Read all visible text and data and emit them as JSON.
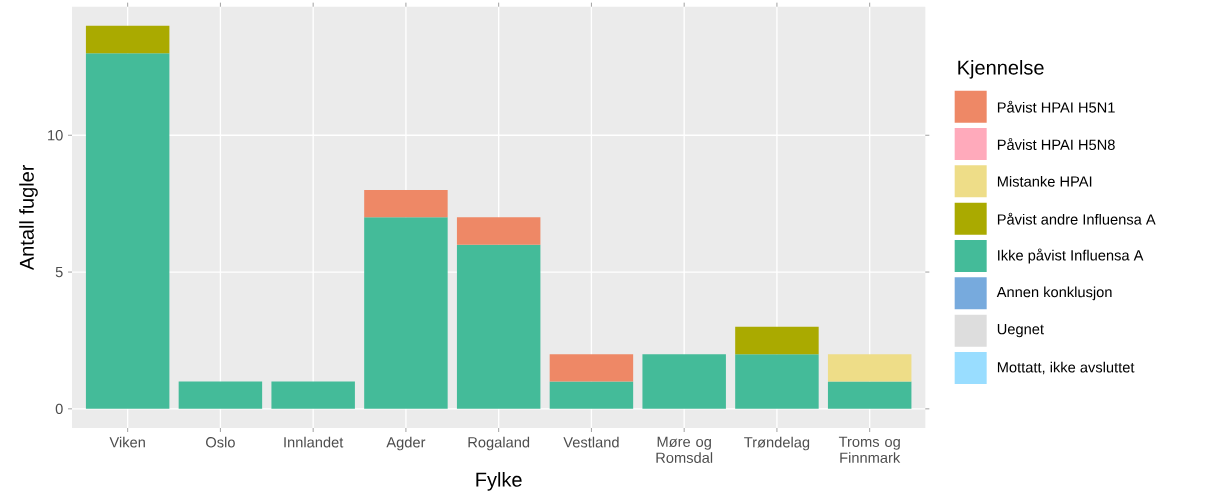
{
  "chart_data": {
    "type": "bar",
    "stacked": true,
    "xlabel": "Fylke",
    "ylabel": "Antall fugler",
    "legend_title": "Kjennelse",
    "categories": [
      "Viken",
      "Oslo",
      "Innlandet",
      "Agder",
      "Rogaland",
      "Vestland",
      "Møre og Romsdal",
      "Trøndelag",
      "Troms og Finnmark"
    ],
    "series": [
      {
        "name": "Mottatt, ikke avsluttet",
        "color": "#99ddff",
        "values": [
          null,
          null,
          null,
          null,
          null,
          null,
          null,
          null,
          null
        ]
      },
      {
        "name": "Uegnet",
        "color": "#dddddd",
        "values": [
          null,
          null,
          null,
          null,
          null,
          null,
          null,
          null,
          null
        ]
      },
      {
        "name": "Annen konklusjon",
        "color": "#77aadd",
        "values": [
          null,
          null,
          null,
          null,
          null,
          null,
          null,
          null,
          null
        ]
      },
      {
        "name": "Ikke påvist Influensa A",
        "color": "#44bb99",
        "values": [
          13,
          1,
          1,
          7,
          6,
          1,
          2,
          2,
          1
        ]
      },
      {
        "name": "Påvist andre Influensa A",
        "color": "#aaaa00",
        "values": [
          1,
          null,
          null,
          null,
          null,
          null,
          null,
          1,
          null
        ]
      },
      {
        "name": "Mistanke HPAI",
        "color": "#eedd88",
        "values": [
          null,
          null,
          null,
          null,
          null,
          null,
          null,
          null,
          1
        ]
      },
      {
        "name": "Påvist HPAI H5N8",
        "color": "#ffaabb",
        "values": [
          null,
          null,
          null,
          null,
          null,
          null,
          null,
          null,
          null
        ]
      },
      {
        "name": "Påvist HPAI H5N1",
        "color": "#ee8866",
        "values": [
          null,
          null,
          null,
          1,
          1,
          1,
          null,
          null,
          null
        ]
      }
    ],
    "ylim": [
      -0.7,
      14.7
    ],
    "yticks": [
      0,
      5,
      10
    ],
    "grid": true,
    "legend": "right"
  }
}
